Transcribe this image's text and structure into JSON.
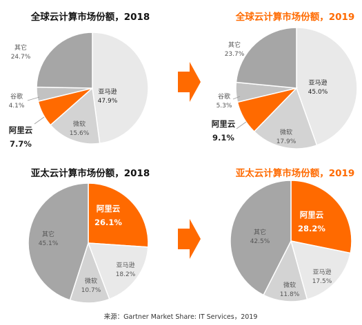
{
  "colors": {
    "aliyun": "#FF6A00",
    "amazon": "#E9E9E9",
    "microsoft": "#D3D3D3",
    "google": "#C2C2C2",
    "others": "#A6A6A6",
    "arrow": "#FF6A00",
    "title_dark": "#111111",
    "title_orange": "#FF6A00",
    "label_dark": "#222222",
    "label_grey": "#555555",
    "label_white": "#FFFFFF"
  },
  "source_note": "来源：Gartner Market Share: IT Services，2019",
  "chart_data": [
    {
      "type": "pie",
      "title": "全球云计算市场份额，2018",
      "title_style": "dark",
      "slices": [
        {
          "name": "亚马逊",
          "value": 47.9,
          "value_label": "47.9%",
          "color_key": "amazon"
        },
        {
          "name": "微软",
          "value": 15.6,
          "value_label": "15.6%",
          "color_key": "microsoft"
        },
        {
          "name": "阿里云",
          "value": 7.7,
          "value_label": "7.7%",
          "color_key": "aliyun"
        },
        {
          "name": "谷歌",
          "value": 4.1,
          "value_label": "4.1%",
          "color_key": "google"
        },
        {
          "name": "其它",
          "value": 24.7,
          "value_label": "24.7%",
          "color_key": "others"
        }
      ]
    },
    {
      "type": "pie",
      "title": "全球云计算市场份额，2019",
      "title_style": "orange",
      "slices": [
        {
          "name": "亚马逊",
          "value": 45.0,
          "value_label": "45.0%",
          "color_key": "amazon"
        },
        {
          "name": "微软",
          "value": 17.9,
          "value_label": "17.9%",
          "color_key": "microsoft"
        },
        {
          "name": "阿里云",
          "value": 9.1,
          "value_label": "9.1%",
          "color_key": "aliyun"
        },
        {
          "name": "谷歌",
          "value": 5.3,
          "value_label": "5.3%",
          "color_key": "google"
        },
        {
          "name": "其它",
          "value": 23.7,
          "value_label": "23.7%",
          "color_key": "others"
        }
      ]
    },
    {
      "type": "pie",
      "title": "亚太云计算市场份额，2018",
      "title_style": "dark",
      "slices": [
        {
          "name": "阿里云",
          "value": 26.1,
          "value_label": "26.1%",
          "color_key": "aliyun"
        },
        {
          "name": "亚马逊",
          "value": 18.2,
          "value_label": "18.2%",
          "color_key": "amazon"
        },
        {
          "name": "微软",
          "value": 10.7,
          "value_label": "10.7%",
          "color_key": "microsoft"
        },
        {
          "name": "其它",
          "value": 45.1,
          "value_label": "45.1%",
          "color_key": "others"
        }
      ]
    },
    {
      "type": "pie",
      "title": "亚太云计算市场份额，2019",
      "title_style": "orange",
      "slices": [
        {
          "name": "阿里云",
          "value": 28.2,
          "value_label": "28.2%",
          "color_key": "aliyun"
        },
        {
          "name": "亚马逊",
          "value": 17.5,
          "value_label": "17.5%",
          "color_key": "amazon"
        },
        {
          "name": "微软",
          "value": 11.8,
          "value_label": "11.8%",
          "color_key": "microsoft"
        },
        {
          "name": "其它",
          "value": 42.5,
          "value_label": "42.5%",
          "color_key": "others"
        }
      ]
    }
  ]
}
